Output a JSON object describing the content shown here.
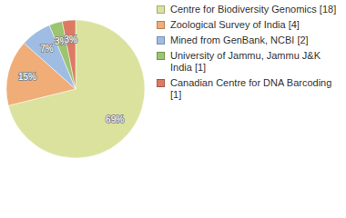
{
  "chart_data": {
    "type": "pie",
    "categories": [
      "Centre for Biodiversity Genomics [18]",
      "Zoological Survey of India [4]",
      "Mined from GenBank, NCBI [2]",
      "University of Jammu, Jammu J&K India [1]",
      "Canadian Centre for DNA Barcoding [1]"
    ],
    "values": [
      69,
      15,
      7,
      3,
      3
    ],
    "value_labels": [
      "69%",
      "15%",
      "7%",
      "3%",
      "3%"
    ],
    "colors": [
      "#dbe29e",
      "#f0ad77",
      "#9fbde3",
      "#9cc471",
      "#dc7a63"
    ],
    "data_labels": true,
    "legend": "right"
  }
}
